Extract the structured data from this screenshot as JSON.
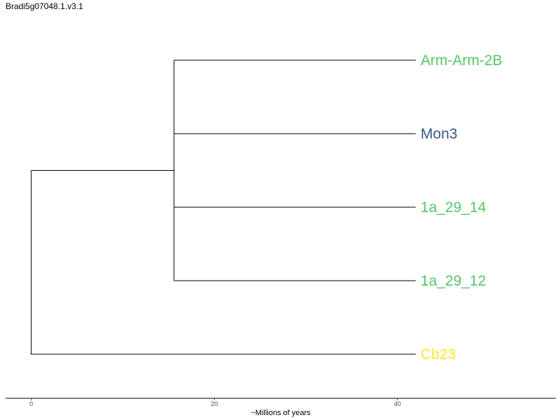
{
  "title": "Bradi5g07048.1.v3.1",
  "axis": {
    "label": "~Millions of years",
    "ticks": [
      0,
      20,
      40
    ],
    "range": [
      -2.8,
      57.3
    ]
  },
  "tree": {
    "tips": [
      {
        "label": "Arm-Arm-2B",
        "color": "#55c667",
        "depth": 42.0
      },
      {
        "label": "Mon3",
        "color": "#39568c",
        "depth": 42.0
      },
      {
        "label": "1a_29_14",
        "color": "#55c667",
        "depth": 42.0
      },
      {
        "label": "1a_29_12",
        "color": "#55c667",
        "depth": 42.0
      },
      {
        "label": "Cb23",
        "color": "#fde725",
        "depth": 42.0
      }
    ],
    "internal_nodes": [
      {
        "depth": 0.0,
        "children": [
          "clade",
          "Cb23"
        ]
      },
      {
        "depth": 15.6,
        "name": "clade",
        "children": [
          "Arm-Arm-2B",
          "Mon3",
          "1a_29_14",
          "1a_29_12"
        ]
      }
    ]
  }
}
